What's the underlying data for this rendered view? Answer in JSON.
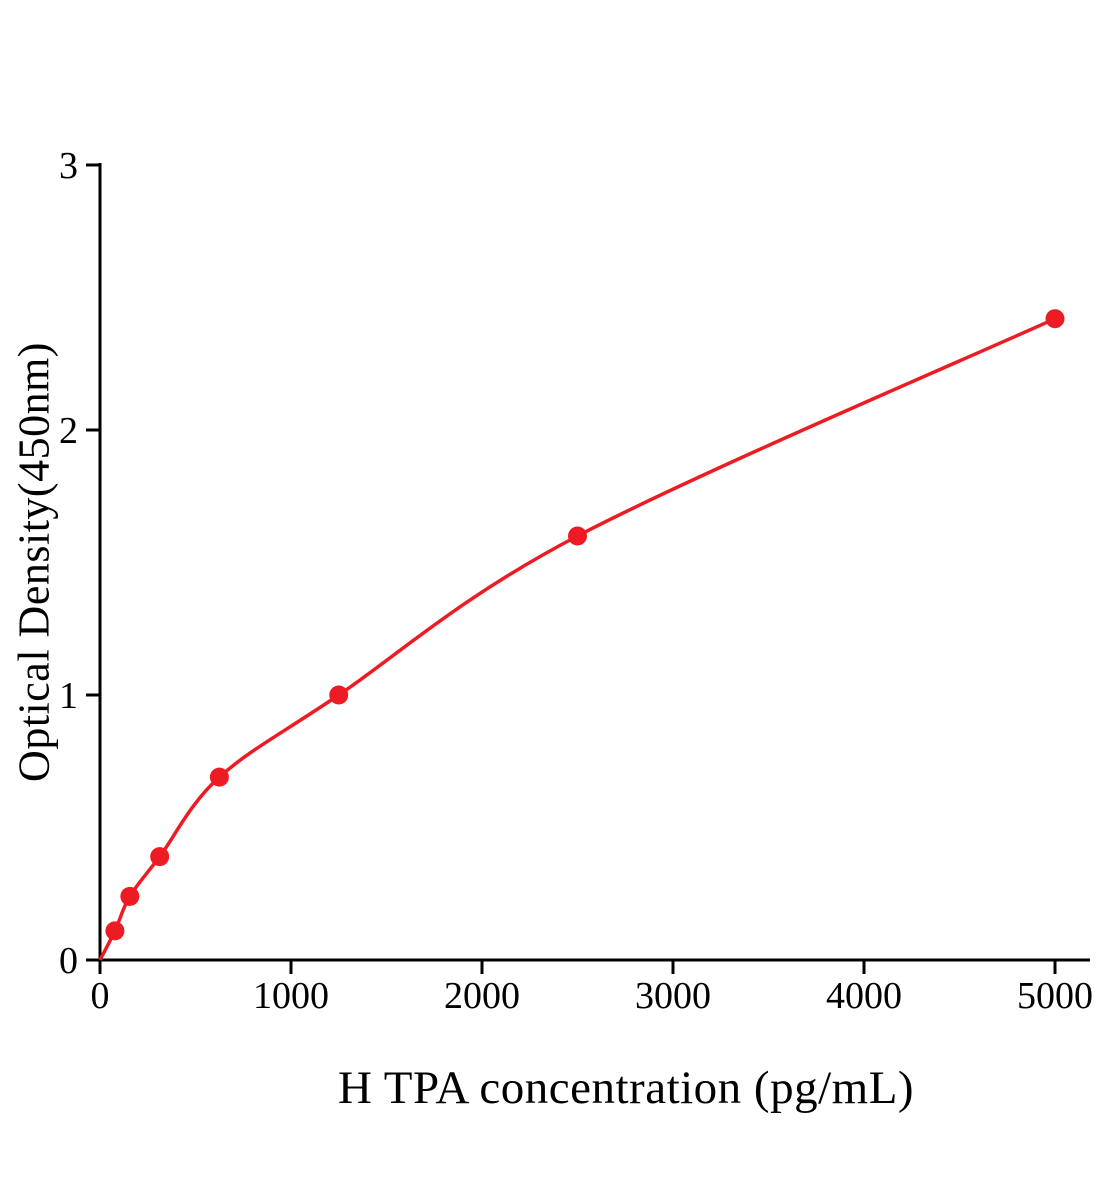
{
  "page": {
    "background": "#ffffff"
  },
  "chart_data": {
    "type": "line",
    "title": "",
    "xlabel": "H TPA concentration (pg/mL)",
    "ylabel": "Optical Density(450nm)",
    "x": [
      78.125,
      156.25,
      312.5,
      625,
      1250,
      2500,
      5000
    ],
    "y": [
      0.11,
      0.24,
      0.39,
      0.69,
      1.0,
      1.6,
      2.42
    ],
    "curve_start": {
      "x": 0,
      "y": 0
    },
    "xticks": [
      0,
      1000,
      2000,
      3000,
      4000,
      5000
    ],
    "yticks": [
      0,
      1,
      2,
      3
    ],
    "xlim": [
      0,
      5000
    ],
    "ylim": [
      0,
      3
    ],
    "grid": false,
    "legend_position": "none",
    "line_color": "#ed1c24",
    "marker_color": "#ed1c24",
    "axis_color": "#000000"
  }
}
